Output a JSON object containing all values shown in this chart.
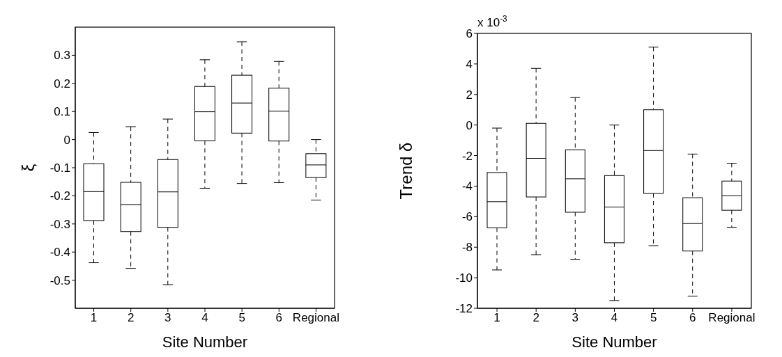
{
  "chart_data": [
    {
      "type": "box",
      "xlabel": "Site Number",
      "ylabel": "ξ",
      "categories": [
        "1",
        "2",
        "3",
        "4",
        "5",
        "6",
        "Regional"
      ],
      "color": "#000000",
      "ylim": [
        -0.6,
        0.4
      ],
      "yticks": [
        -0.5,
        -0.4,
        -0.3,
        -0.2,
        -0.1,
        0,
        0.1,
        0.2,
        0.3
      ],
      "boxes": [
        {
          "low": -0.438,
          "q1": -0.288,
          "median": -0.185,
          "q3": -0.086,
          "high": 0.025
        },
        {
          "low": -0.458,
          "q1": -0.327,
          "median": -0.231,
          "q3": -0.152,
          "high": 0.046
        },
        {
          "low": -0.516,
          "q1": -0.312,
          "median": -0.186,
          "q3": -0.071,
          "high": 0.073
        },
        {
          "low": -0.173,
          "q1": -0.004,
          "median": 0.099,
          "q3": 0.189,
          "high": 0.284
        },
        {
          "low": -0.156,
          "q1": 0.023,
          "median": 0.13,
          "q3": 0.229,
          "high": 0.348
        },
        {
          "low": -0.153,
          "q1": -0.005,
          "median": 0.101,
          "q3": 0.183,
          "high": 0.278
        },
        {
          "low": -0.215,
          "q1": -0.135,
          "median": -0.09,
          "q3": -0.05,
          "high": 0.0
        }
      ]
    },
    {
      "type": "box",
      "xlabel": "Site Number",
      "ylabel": "Trend δ",
      "annotations": [
        "x 10$^{-3}$"
      ],
      "categories": [
        "1",
        "2",
        "3",
        "4",
        "5",
        "6",
        "Regional"
      ],
      "color": "#000000",
      "ylim": [
        -12,
        6
      ],
      "yticks": [
        -12,
        -10,
        -8,
        -6,
        -4,
        -2,
        0,
        2,
        4,
        6
      ],
      "boxes": [
        {
          "low": -9.49,
          "q1": -6.73,
          "median": -5.02,
          "q3": -3.11,
          "high": -0.2
        },
        {
          "low": -8.49,
          "q1": -4.71,
          "median": -2.18,
          "q3": 0.11,
          "high": 3.71
        },
        {
          "low": -8.79,
          "q1": -5.71,
          "median": -3.52,
          "q3": -1.62,
          "high": 1.8
        },
        {
          "low": -11.49,
          "q1": -7.71,
          "median": -5.37,
          "q3": -3.31,
          "high": 0.0
        },
        {
          "low": -7.9,
          "q1": -4.48,
          "median": -1.67,
          "q3": 1.0,
          "high": 5.1
        },
        {
          "low": -11.2,
          "q1": -8.25,
          "median": -6.45,
          "q3": -4.76,
          "high": -1.9
        },
        {
          "low": -6.69,
          "q1": -5.58,
          "median": -4.63,
          "q3": -3.67,
          "high": -2.5
        }
      ]
    }
  ]
}
